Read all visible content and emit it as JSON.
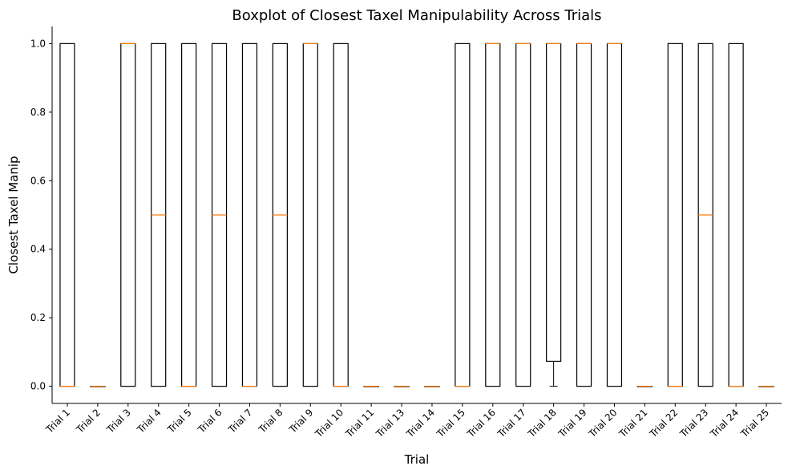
{
  "chart_data": {
    "type": "boxplot",
    "title": "Boxplot of Closest Taxel Manipulability Across Trials",
    "xlabel": "Trial",
    "ylabel": "Closest Taxel Manip",
    "ylim": [
      -0.05,
      1.05
    ],
    "yticks": [
      "0.0",
      "0.2",
      "0.4",
      "0.6",
      "0.8",
      "1.0"
    ],
    "grid": false,
    "colors": {
      "box": "#000000",
      "median": "#ff7f0e",
      "background": "#ffffff"
    },
    "categories": [
      "Trial 1",
      "Trial 2",
      "Trial 3",
      "Trial 4",
      "Trial 5",
      "Trial 6",
      "Trial 7",
      "Trial 8",
      "Trial 9",
      "Trial 10",
      "Trial 11",
      "Trial 13",
      "Trial 14",
      "Trial 15",
      "Trial 16",
      "Trial 17",
      "Trial 18",
      "Trial 19",
      "Trial 20",
      "Trial 21",
      "Trial 22",
      "Trial 23",
      "Trial 24",
      "Trial 25"
    ],
    "boxes": [
      {
        "q1": 0,
        "median": 0,
        "q3": 1,
        "whislo": 0,
        "whishi": 1
      },
      {
        "q1": 0,
        "median": 0,
        "q3": 0,
        "whislo": 0,
        "whishi": 0
      },
      {
        "q1": 0,
        "median": 1,
        "q3": 1,
        "whislo": 0,
        "whishi": 1
      },
      {
        "q1": 0,
        "median": 0.5,
        "q3": 1,
        "whislo": 0,
        "whishi": 1
      },
      {
        "q1": 0,
        "median": 0,
        "q3": 1,
        "whislo": 0,
        "whishi": 1
      },
      {
        "q1": 0,
        "median": 0.5,
        "q3": 1,
        "whislo": 0,
        "whishi": 1
      },
      {
        "q1": 0,
        "median": 0,
        "q3": 1,
        "whislo": 0,
        "whishi": 1
      },
      {
        "q1": 0,
        "median": 0.5,
        "q3": 1,
        "whislo": 0,
        "whishi": 1
      },
      {
        "q1": 0,
        "median": 1,
        "q3": 1,
        "whislo": 0,
        "whishi": 1
      },
      {
        "q1": 0,
        "median": 0,
        "q3": 1,
        "whislo": 0,
        "whishi": 1
      },
      {
        "q1": 0,
        "median": 0,
        "q3": 0,
        "whislo": 0,
        "whishi": 0
      },
      {
        "q1": 0,
        "median": 0,
        "q3": 0,
        "whislo": 0,
        "whishi": 0
      },
      {
        "q1": 0,
        "median": 0,
        "q3": 0,
        "whislo": 0,
        "whishi": 0
      },
      {
        "q1": 0,
        "median": 0,
        "q3": 1,
        "whislo": 0,
        "whishi": 1
      },
      {
        "q1": 0,
        "median": 1,
        "q3": 1,
        "whislo": 0,
        "whishi": 1
      },
      {
        "q1": 0,
        "median": 1,
        "q3": 1,
        "whislo": 0,
        "whishi": 1
      },
      {
        "q1": 0.073,
        "median": 1,
        "q3": 1,
        "whislo": 0,
        "whishi": 1
      },
      {
        "q1": 0,
        "median": 1,
        "q3": 1,
        "whislo": 0,
        "whishi": 1
      },
      {
        "q1": 0,
        "median": 1,
        "q3": 1,
        "whislo": 0,
        "whishi": 1
      },
      {
        "q1": 0,
        "median": 0,
        "q3": 0,
        "whislo": 0,
        "whishi": 0
      },
      {
        "q1": 0,
        "median": 0,
        "q3": 1,
        "whislo": 0,
        "whishi": 1
      },
      {
        "q1": 0,
        "median": 0.5,
        "q3": 1,
        "whislo": 0,
        "whishi": 1
      },
      {
        "q1": 0,
        "median": 0,
        "q3": 1,
        "whislo": 0,
        "whishi": 1
      },
      {
        "q1": 0,
        "median": 0,
        "q3": 0,
        "whislo": 0,
        "whishi": 0
      }
    ]
  }
}
